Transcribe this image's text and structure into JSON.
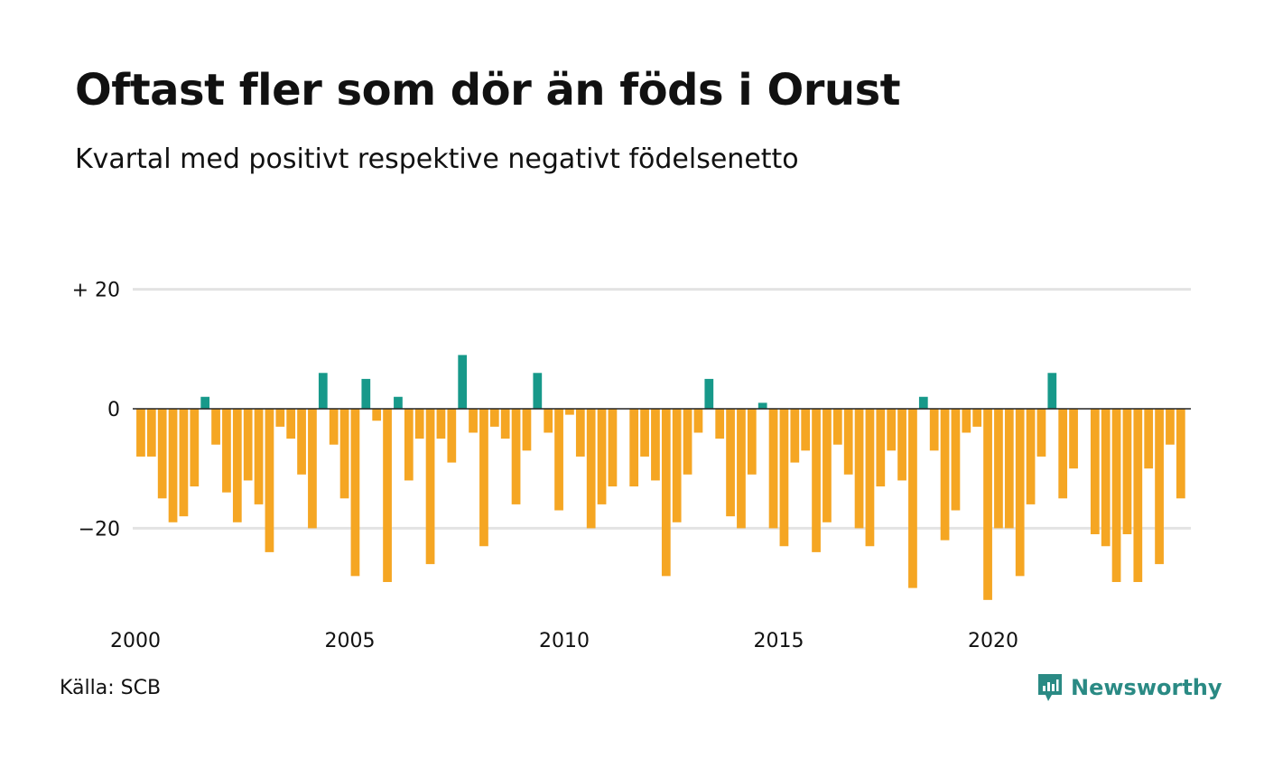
{
  "title": "Oftast fler som dör än föds i Orust",
  "subtitle": "Kvartal med positivt respektive negativt födelsenetto",
  "source": "Källa: SCB",
  "brand": {
    "name": "Newsworthy",
    "icon": "newsworthy-logo-icon"
  },
  "colors": {
    "positive": "#17998a",
    "negative": "#f5a623",
    "gridline": "#e3e3e3",
    "baseline": "#222222",
    "brand": "#2a8a84"
  },
  "chart_data": {
    "type": "bar",
    "title": "Oftast fler som dör än föds i Orust",
    "subtitle": "Kvartal med positivt respektive negativt födelsenetto",
    "xlabel": "",
    "ylabel": "",
    "x_start": 2000,
    "periods_per_year": 4,
    "ylim": [
      -34,
      22
    ],
    "y_ticks": [
      {
        "value": 20,
        "label": "+ 20"
      },
      {
        "value": 0,
        "label": "0"
      },
      {
        "value": -20,
        "label": "−20"
      }
    ],
    "x_ticks": [
      {
        "value": 2000,
        "label": "2000"
      },
      {
        "value": 2005,
        "label": "2005"
      },
      {
        "value": 2010,
        "label": "2010"
      },
      {
        "value": 2015,
        "label": "2015"
      },
      {
        "value": 2020,
        "label": "2020"
      }
    ],
    "grid": true,
    "legend": "none",
    "values": [
      -8,
      -8,
      -15,
      -19,
      -18,
      -13,
      2,
      -6,
      -14,
      -19,
      -12,
      -16,
      -24,
      -3,
      -5,
      -11,
      -20,
      6,
      -6,
      -15,
      -28,
      5,
      -2,
      -29,
      2,
      -12,
      -5,
      -26,
      -5,
      -9,
      9,
      -4,
      -23,
      -3,
      -5,
      -16,
      -7,
      6,
      -4,
      -17,
      -1,
      -8,
      -20,
      -16,
      -13,
      0,
      -13,
      -8,
      -12,
      -28,
      -19,
      -11,
      -4,
      5,
      -5,
      -18,
      -20,
      -11,
      1,
      -20,
      -23,
      -9,
      -7,
      -24,
      -19,
      -6,
      -11,
      -20,
      -23,
      -13,
      -7,
      -12,
      -30,
      2,
      -7,
      -22,
      -17,
      -4,
      -3,
      -32,
      -20,
      -20,
      -28,
      -16,
      -8,
      6,
      -15,
      -10,
      0,
      -21,
      -23,
      -29,
      -21,
      -29,
      -10,
      -26,
      -6,
      -15
    ]
  }
}
